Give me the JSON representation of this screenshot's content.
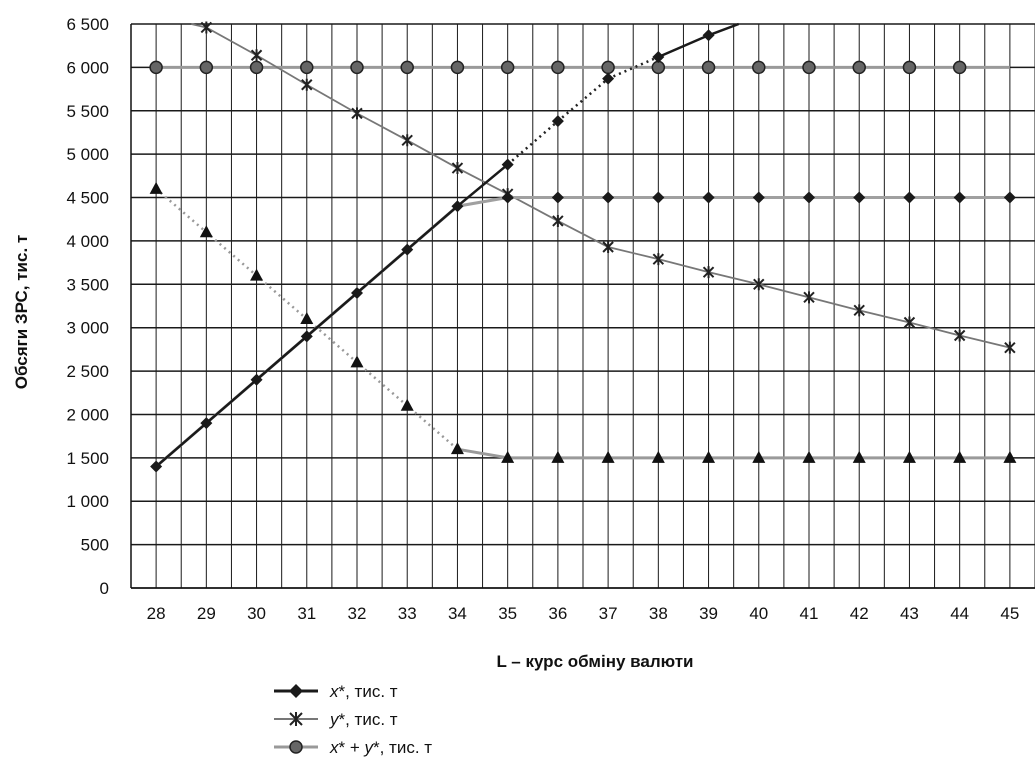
{
  "chart_data": {
    "type": "line",
    "xlabel": "L – курс обміну валюти",
    "ylabel": "Обсяги ЗРС, тис. т",
    "x": [
      28,
      29,
      30,
      31,
      32,
      33,
      34,
      35,
      36,
      37,
      38,
      39,
      40,
      41,
      42,
      43,
      44,
      45
    ],
    "ylim": [
      0,
      6500
    ],
    "yticks": [
      0,
      500,
      1000,
      1500,
      2000,
      2500,
      3000,
      3500,
      4000,
      4500,
      5000,
      5500,
      6000,
      6500
    ],
    "ytick_labels": [
      "0",
      "500",
      "1 000",
      "1 500",
      "2 000",
      "2 500",
      "3 000",
      "3 500",
      "4 000",
      "4 500",
      "5 000",
      "5 500",
      "6 000",
      "6 500"
    ],
    "grid": true,
    "legend_position": "bottom",
    "series": [
      {
        "name": "x*, тис. т",
        "legend_prefix": "x",
        "legend_suffix": "*, тис. т",
        "marker": "diamond",
        "color": "#1a1a1a",
        "line_x": [
          28,
          29,
          30,
          31,
          32,
          33,
          34,
          35,
          39,
          39.6
        ],
        "line_y": [
          1400,
          1900,
          2400,
          2900,
          3400,
          3900,
          4400,
          4880,
          6370,
          6500
        ],
        "dotted_x": [
          35,
          36,
          37,
          38
        ],
        "dotted_y": [
          4880,
          5380,
          5870,
          6120
        ],
        "points": [
          {
            "x": 28,
            "y": 1400
          },
          {
            "x": 29,
            "y": 1900
          },
          {
            "x": 30,
            "y": 2400
          },
          {
            "x": 31,
            "y": 2900
          },
          {
            "x": 32,
            "y": 3400
          },
          {
            "x": 33,
            "y": 3900
          },
          {
            "x": 34,
            "y": 4400
          },
          {
            "x": 35,
            "y": 4500
          },
          {
            "x": 36,
            "y": 4500
          },
          {
            "x": 37,
            "y": 4500
          },
          {
            "x": 38,
            "y": 4500
          },
          {
            "x": 39,
            "y": 4500
          },
          {
            "x": 40,
            "y": 4500
          },
          {
            "x": 41,
            "y": 4500
          },
          {
            "x": 42,
            "y": 4500
          },
          {
            "x": 43,
            "y": 4500
          },
          {
            "x": 44,
            "y": 4500
          },
          {
            "x": 45,
            "y": 4500
          },
          {
            "x": 35,
            "y": 4880
          },
          {
            "x": 36,
            "y": 5380
          },
          {
            "x": 37,
            "y": 5870
          },
          {
            "x": 38,
            "y": 6120
          },
          {
            "x": 39,
            "y": 6370
          }
        ],
        "constrained_line_x": [
          28,
          29,
          30,
          31,
          32,
          33,
          34,
          35,
          36,
          37,
          38,
          39,
          40,
          41,
          42,
          43,
          44,
          45
        ],
        "constrained_line_y": [
          1400,
          1900,
          2400,
          2900,
          3400,
          3900,
          4400,
          4500,
          4500,
          4500,
          4500,
          4500,
          4500,
          4500,
          4500,
          4500,
          4500,
          4500
        ]
      },
      {
        "name": "y*, тис. т",
        "legend_prefix": "y",
        "legend_suffix": "*, тис. т",
        "marker": "star",
        "color": "#666666",
        "points": [
          {
            "x": 29,
            "y": 6460
          },
          {
            "x": 30,
            "y": 6140
          },
          {
            "x": 31,
            "y": 5800
          },
          {
            "x": 32,
            "y": 5470
          },
          {
            "x": 33,
            "y": 5160
          },
          {
            "x": 34,
            "y": 4840
          },
          {
            "x": 35,
            "y": 4540
          },
          {
            "x": 36,
            "y": 4230
          },
          {
            "x": 37,
            "y": 3930
          },
          {
            "x": 38,
            "y": 3790
          },
          {
            "x": 39,
            "y": 3640
          },
          {
            "x": 40,
            "y": 3500
          },
          {
            "x": 41,
            "y": 3350
          },
          {
            "x": 42,
            "y": 3200
          },
          {
            "x": 43,
            "y": 3060
          },
          {
            "x": 44,
            "y": 2910
          },
          {
            "x": 45,
            "y": 2770
          }
        ],
        "line_x": [
          28.7,
          29,
          30,
          31,
          32,
          33,
          34,
          35,
          36,
          37,
          38,
          39,
          40,
          41,
          42,
          43,
          44,
          45
        ],
        "line_y": [
          6500,
          6460,
          6140,
          5800,
          5470,
          5160,
          4840,
          4540,
          4230,
          3930,
          3790,
          3640,
          3500,
          3350,
          3200,
          3060,
          2910,
          2770
        ],
        "triangle_points": [
          {
            "x": 28,
            "y": 4600
          },
          {
            "x": 29,
            "y": 4100
          },
          {
            "x": 30,
            "y": 3600
          },
          {
            "x": 31,
            "y": 3100
          },
          {
            "x": 32,
            "y": 2600
          },
          {
            "x": 33,
            "y": 2100
          },
          {
            "x": 34,
            "y": 1600
          },
          {
            "x": 35,
            "y": 1500
          },
          {
            "x": 36,
            "y": 1500
          },
          {
            "x": 37,
            "y": 1500
          },
          {
            "x": 38,
            "y": 1500
          },
          {
            "x": 39,
            "y": 1500
          },
          {
            "x": 40,
            "y": 1500
          },
          {
            "x": 41,
            "y": 1500
          },
          {
            "x": 42,
            "y": 1500
          },
          {
            "x": 43,
            "y": 1500
          },
          {
            "x": 44,
            "y": 1500
          },
          {
            "x": 45,
            "y": 1500
          }
        ],
        "triangle_dotted_x": [
          28,
          29,
          30,
          31,
          32,
          33,
          34
        ],
        "triangle_dotted_y": [
          4600,
          4100,
          3600,
          3100,
          2600,
          2100,
          1600
        ],
        "triangle_solid_x": [
          34,
          35,
          36,
          37,
          38,
          39,
          40,
          41,
          42,
          43,
          44,
          45
        ],
        "triangle_solid_y": [
          1600,
          1500,
          1500,
          1500,
          1500,
          1500,
          1500,
          1500,
          1500,
          1500,
          1500,
          1500
        ]
      },
      {
        "name": "x* + y*, тис. т",
        "legend_prefix": "x",
        "legend_middle": "* + ",
        "legend_prefix2": "y",
        "legend_suffix": "*, тис. т",
        "marker": "circle",
        "color": "#888888",
        "points": [
          {
            "x": 28,
            "y": 6000
          },
          {
            "x": 29,
            "y": 6000
          },
          {
            "x": 30,
            "y": 6000
          },
          {
            "x": 31,
            "y": 6000
          },
          {
            "x": 32,
            "y": 6000
          },
          {
            "x": 33,
            "y": 6000
          },
          {
            "x": 34,
            "y": 6000
          },
          {
            "x": 35,
            "y": 6000
          },
          {
            "x": 36,
            "y": 6000
          },
          {
            "x": 37,
            "y": 6000
          },
          {
            "x": 38,
            "y": 6000
          },
          {
            "x": 39,
            "y": 6000
          },
          {
            "x": 40,
            "y": 6000
          },
          {
            "x": 41,
            "y": 6000
          },
          {
            "x": 42,
            "y": 6000
          },
          {
            "x": 43,
            "y": 6000
          },
          {
            "x": 44,
            "y": 6000
          }
        ],
        "line_x": [
          28,
          45
        ],
        "line_y": [
          6000,
          6000
        ]
      }
    ]
  }
}
